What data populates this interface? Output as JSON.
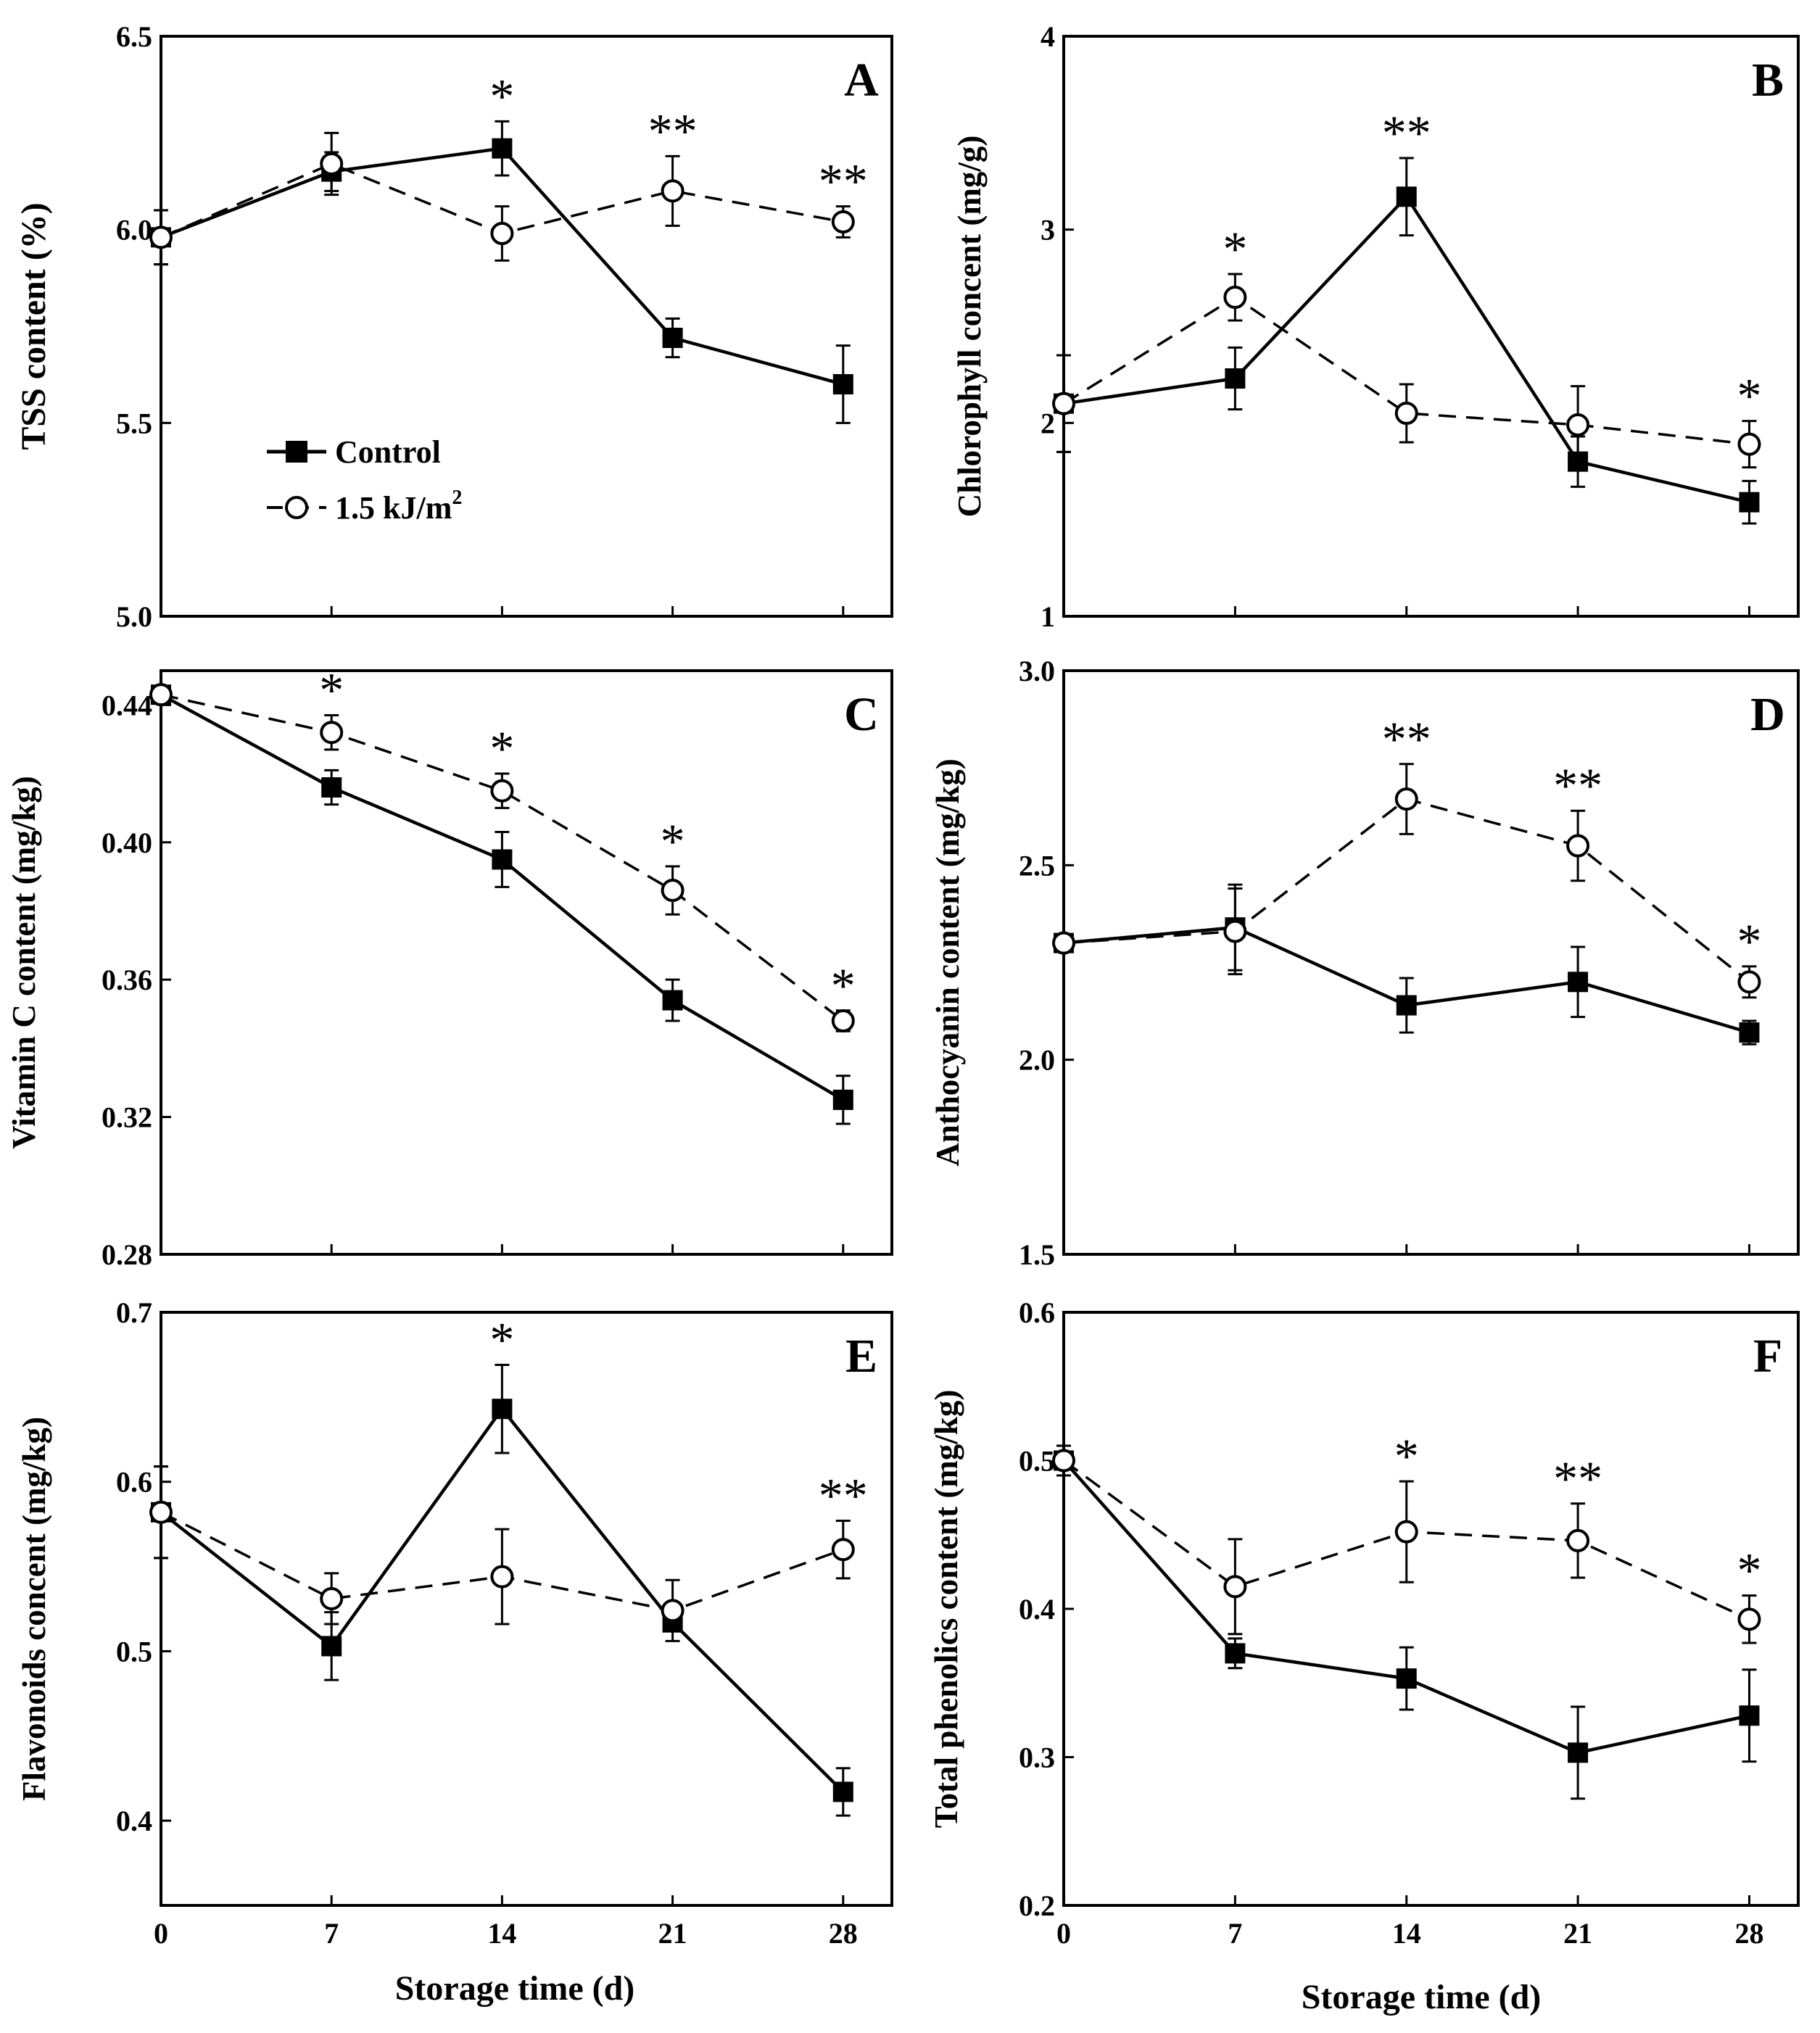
{
  "figure": {
    "x_axis_label": "Storage time (d)",
    "legend": {
      "control_label": "Control",
      "treated_label": "1.5 kJ/m",
      "treated_sup": "2"
    }
  },
  "chart_data": [
    {
      "type": "line",
      "panel": "A",
      "ylabel": "TSS content (%)",
      "xlabel": "",
      "x": [
        0,
        7,
        14,
        21,
        28
      ],
      "xlim": [
        0,
        30
      ],
      "ylim": [
        5.0,
        6.5
      ],
      "yticks": [
        5.0,
        5.5,
        6.0,
        6.5
      ],
      "ytick_labels": [
        "5.0",
        "5.5",
        "6.0",
        "6.5"
      ],
      "xticks": [
        0,
        7,
        14,
        21,
        28
      ],
      "xtick_labels": [
        "",
        "",
        "",
        "",
        ""
      ],
      "series": [
        {
          "name": "Control",
          "values": [
            5.98,
            6.15,
            6.21,
            5.72,
            5.6
          ],
          "errors": [
            0.07,
            0.05,
            0.07,
            0.05,
            0.1
          ]
        },
        {
          "name": "1.5 kJ/m2",
          "values": [
            5.98,
            6.17,
            5.99,
            6.1,
            6.02
          ],
          "errors": [
            0.07,
            0.08,
            0.07,
            0.09,
            0.04
          ]
        }
      ],
      "significance": [
        "",
        "",
        "*",
        "**",
        "**"
      ]
    },
    {
      "type": "line",
      "panel": "B",
      "ylabel": "Chlorophyll concent (mg/g)",
      "xlabel": "",
      "x": [
        0,
        7,
        14,
        21,
        28
      ],
      "xlim": [
        0,
        30
      ],
      "ylim": [
        1,
        4
      ],
      "yticks": [
        1,
        2,
        3,
        4
      ],
      "ytick_labels": [
        "1",
        "2",
        "3",
        "4"
      ],
      "xticks": [
        0,
        7,
        14,
        21,
        28
      ],
      "xtick_labels": [
        "",
        "",
        "",
        "",
        ""
      ],
      "series": [
        {
          "name": "Control",
          "values": [
            2.1,
            2.23,
            3.17,
            1.8,
            1.59
          ],
          "errors": [
            0.25,
            0.16,
            0.2,
            0.13,
            0.11
          ]
        },
        {
          "name": "1.5 kJ/m2",
          "values": [
            2.1,
            2.65,
            2.05,
            1.99,
            1.89
          ],
          "errors": [
            0.25,
            0.12,
            0.15,
            0.2,
            0.12
          ]
        }
      ],
      "significance": [
        "",
        "*",
        "**",
        "",
        "*"
      ]
    },
    {
      "type": "line",
      "panel": "C",
      "ylabel": "Vitamin C content (mg/kg)",
      "xlabel": "",
      "x": [
        0,
        7,
        14,
        21,
        28
      ],
      "xlim": [
        0,
        30
      ],
      "ylim": [
        0.28,
        0.45
      ],
      "yticks": [
        0.28,
        0.32,
        0.36,
        0.4,
        0.44
      ],
      "ytick_labels": [
        "0.28",
        "0.32",
        "0.36",
        "0.40",
        "0.44"
      ],
      "xticks": [
        0,
        7,
        14,
        21,
        28
      ],
      "xtick_labels": [
        "",
        "",
        "",
        "",
        ""
      ],
      "series": [
        {
          "name": "Control",
          "values": [
            0.443,
            0.416,
            0.395,
            0.354,
            0.325
          ],
          "errors": [
            0.002,
            0.005,
            0.008,
            0.006,
            0.007
          ]
        },
        {
          "name": "1.5 kJ/m2",
          "values": [
            0.443,
            0.432,
            0.415,
            0.386,
            0.348
          ],
          "errors": [
            0.002,
            0.005,
            0.005,
            0.007,
            0.003
          ]
        }
      ],
      "significance": [
        "",
        "*",
        "*",
        "*",
        "*"
      ]
    },
    {
      "type": "line",
      "panel": "D",
      "ylabel": "Anthocyanin content (mg/kg)",
      "xlabel": "",
      "x": [
        0,
        7,
        14,
        21,
        28
      ],
      "xlim": [
        0,
        30
      ],
      "ylim": [
        1.5,
        3.0
      ],
      "yticks": [
        1.5,
        2.0,
        2.5,
        3.0
      ],
      "ytick_labels": [
        "1.5",
        "2.0",
        "2.5",
        "3.0"
      ],
      "xticks": [
        0,
        7,
        14,
        21,
        28
      ],
      "xtick_labels": [
        "",
        "",
        "",
        "",
        ""
      ],
      "series": [
        {
          "name": "Control",
          "values": [
            2.3,
            2.34,
            2.14,
            2.2,
            2.07
          ],
          "errors": [
            0.01,
            0.11,
            0.07,
            0.09,
            0.03
          ]
        },
        {
          "name": "1.5 kJ/m2",
          "values": [
            2.3,
            2.33,
            2.67,
            2.55,
            2.2
          ],
          "errors": [
            0.01,
            0.11,
            0.09,
            0.09,
            0.04
          ]
        }
      ],
      "significance": [
        "",
        "",
        "**",
        "**",
        "*"
      ]
    },
    {
      "type": "line",
      "panel": "E",
      "ylabel": "Flavonoids concent (mg/kg)",
      "xlabel": "Storage time (d)",
      "x": [
        0,
        7,
        14,
        21,
        28
      ],
      "xlim": [
        0,
        30
      ],
      "ylim": [
        0.35,
        0.7
      ],
      "yticks": [
        0.4,
        0.5,
        0.6,
        0.7
      ],
      "ytick_labels": [
        "0.4",
        "0.5",
        "0.6",
        "0.7"
      ],
      "xticks": [
        0,
        7,
        14,
        21,
        28
      ],
      "xtick_labels": [
        "0",
        "7",
        "14",
        "21",
        "28"
      ],
      "series": [
        {
          "name": "Control",
          "values": [
            0.582,
            0.503,
            0.643,
            0.517,
            0.417
          ],
          "errors": [
            0.027,
            0.02,
            0.026,
            0.005,
            0.014
          ]
        },
        {
          "name": "1.5 kJ/m2",
          "values": [
            0.582,
            0.531,
            0.544,
            0.524,
            0.56
          ],
          "errors": [
            0.027,
            0.015,
            0.028,
            0.018,
            0.017
          ]
        }
      ],
      "significance": [
        "",
        "",
        "*",
        "",
        "**"
      ]
    },
    {
      "type": "line",
      "panel": "F",
      "ylabel": "Total phenolics content (mg/kg)",
      "xlabel": "Storage time (d)",
      "x": [
        0,
        7,
        14,
        21,
        28
      ],
      "xlim": [
        0,
        30
      ],
      "ylim": [
        0.2,
        0.6
      ],
      "yticks": [
        0.2,
        0.3,
        0.4,
        0.5,
        0.6
      ],
      "ytick_labels": [
        "0.2",
        "0.3",
        "0.4",
        "0.5",
        "0.6"
      ],
      "xticks": [
        0,
        7,
        14,
        21,
        28
      ],
      "xtick_labels": [
        "0",
        "7",
        "14",
        "21",
        "28"
      ],
      "series": [
        {
          "name": "Control",
          "values": [
            0.5,
            0.37,
            0.353,
            0.303,
            0.328
          ],
          "errors": [
            0.01,
            0.01,
            0.021,
            0.031,
            0.031
          ]
        },
        {
          "name": "1.5 kJ/m2",
          "values": [
            0.5,
            0.415,
            0.452,
            0.446,
            0.393
          ],
          "errors": [
            0.01,
            0.032,
            0.034,
            0.025,
            0.016
          ]
        }
      ],
      "significance": [
        "",
        "",
        "*",
        "**",
        "*"
      ]
    }
  ]
}
